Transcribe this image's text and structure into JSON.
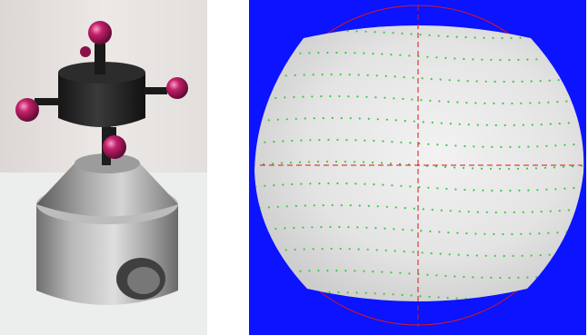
{
  "figure": {
    "panels": [
      {
        "id": "left",
        "subject": "stylus-probe-photo"
      },
      {
        "id": "right",
        "subject": "scanned-sphere-render"
      }
    ]
  },
  "colors": {
    "render_background": "#0b13ff",
    "sphere": "#e8e8e8",
    "crosshair": "#d81818",
    "scan_points": "#3ec83e",
    "ruby_balls": "#b0145a",
    "metal_body": "#a9a9a9"
  }
}
